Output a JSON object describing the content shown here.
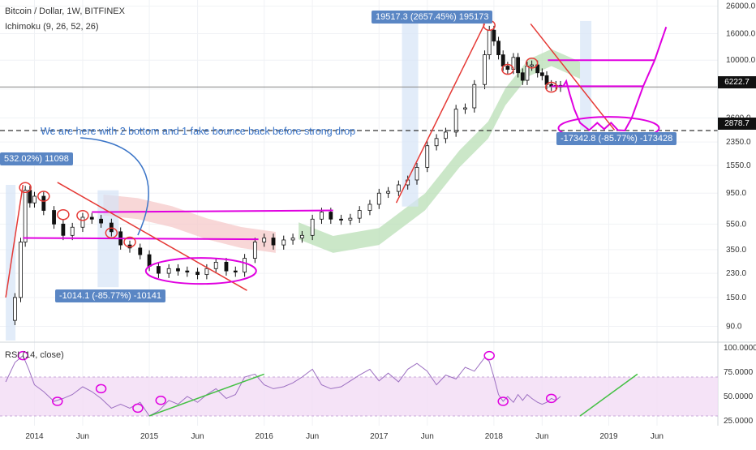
{
  "header": {
    "symbol": "Bitcoin / Dollar, 1W, BITFINEX",
    "indicator": "Ichimoku (9, 26, 52, 26)",
    "rsi_label": "RSI (14, close)"
  },
  "annotations": {
    "note": "We are here with 2 bottom and 1 fake bounce back before strong drop",
    "measure_2013": "532.02%) 11098",
    "measure_2017": "19517.3 (2657.45%) 195173",
    "drop_2014": "-1014.1 (-85.77%) -10141",
    "drop_2018": "-17342.8 (-85.77%) -173428"
  },
  "price_tags": {
    "current": "6222.7",
    "target": "2878.7"
  },
  "colors": {
    "candle": "#111111",
    "magenta": "#e000e0",
    "red_drawing": "#e53935",
    "green_drawing": "#43c043",
    "label_bg": "#5a86c4",
    "cloud_green": "#b9dfb5",
    "cloud_red": "#f5c9c9",
    "rsi_band": "#f2dcf5",
    "rsi_line": "#9c6fc1",
    "current_tag": "#111111",
    "target_tag": "#111111"
  },
  "chart_data": [
    {
      "type": "candlestick",
      "title": "Bitcoin / Dollar, 1W, BITFINEX",
      "scale": "log",
      "y_ticks": [
        90.0,
        150.0,
        230.0,
        350.0,
        550.0,
        950.0,
        1550.0,
        2350.0,
        3600.0,
        6000.0,
        10000.0,
        16000.0,
        26000.0
      ],
      "y_tick_labels": [
        "90.0",
        "150.0",
        "230.0",
        "350.0",
        "550.0",
        "950.0",
        "1550.0",
        "2350.0",
        "3600.0",
        "",
        "10000.0",
        "16000.0",
        "26000.0"
      ],
      "x_tick_labels": [
        "2014",
        "Jun",
        "2015",
        "Jun",
        "2016",
        "Jun",
        "2017",
        "Jun",
        "2018",
        "Jun",
        "2019",
        "Jun"
      ],
      "price_series": [
        [
          2013.75,
          100
        ],
        [
          2013.83,
          150
        ],
        [
          2013.88,
          400
        ],
        [
          2013.92,
          1000
        ],
        [
          2013.96,
          800
        ],
        [
          2014.0,
          900
        ],
        [
          2014.08,
          700
        ],
        [
          2014.17,
          550
        ],
        [
          2014.25,
          450
        ],
        [
          2014.33,
          520
        ],
        [
          2014.42,
          620
        ],
        [
          2014.5,
          600
        ],
        [
          2014.58,
          560
        ],
        [
          2014.67,
          480
        ],
        [
          2014.75,
          380
        ],
        [
          2014.83,
          360
        ],
        [
          2014.92,
          320
        ],
        [
          2015.0,
          260
        ],
        [
          2015.08,
          230
        ],
        [
          2015.17,
          250
        ],
        [
          2015.25,
          240
        ],
        [
          2015.33,
          235
        ],
        [
          2015.42,
          225
        ],
        [
          2015.5,
          250
        ],
        [
          2015.58,
          280
        ],
        [
          2015.67,
          240
        ],
        [
          2015.75,
          235
        ],
        [
          2015.83,
          300
        ],
        [
          2015.92,
          400
        ],
        [
          2016.0,
          430
        ],
        [
          2016.08,
          380
        ],
        [
          2016.17,
          415
        ],
        [
          2016.25,
          430
        ],
        [
          2016.33,
          450
        ],
        [
          2016.42,
          600
        ],
        [
          2016.5,
          680
        ],
        [
          2016.58,
          600
        ],
        [
          2016.67,
          590
        ],
        [
          2016.75,
          610
        ],
        [
          2016.83,
          700
        ],
        [
          2016.92,
          780
        ],
        [
          2017.0,
          950
        ],
        [
          2017.08,
          980
        ],
        [
          2017.17,
          1100
        ],
        [
          2017.25,
          1200
        ],
        [
          2017.33,
          1500
        ],
        [
          2017.42,
          2200
        ],
        [
          2017.5,
          2500
        ],
        [
          2017.58,
          2800
        ],
        [
          2017.67,
          4200
        ],
        [
          2017.75,
          4300
        ],
        [
          2017.83,
          6500
        ],
        [
          2017.92,
          11000
        ],
        [
          2017.96,
          17000
        ],
        [
          2018.0,
          14000
        ],
        [
          2018.04,
          11000
        ],
        [
          2018.08,
          9000
        ],
        [
          2018.12,
          8500
        ],
        [
          2018.17,
          10500
        ],
        [
          2018.21,
          8000
        ],
        [
          2018.25,
          7000
        ],
        [
          2018.29,
          9000
        ],
        [
          2018.33,
          9200
        ],
        [
          2018.38,
          8000
        ],
        [
          2018.42,
          7600
        ],
        [
          2018.46,
          6500
        ],
        [
          2018.5,
          6300
        ],
        [
          2018.54,
          6400
        ],
        [
          2018.58,
          6200
        ]
      ],
      "projection": [
        [
          2018.6,
          6222.7
        ],
        [
          2018.63,
          6900
        ],
        [
          2018.66,
          5500
        ],
        [
          2018.7,
          4200
        ],
        [
          2018.75,
          3300
        ],
        [
          2018.83,
          2900
        ],
        [
          2018.9,
          3300
        ],
        [
          2018.96,
          2950
        ],
        [
          2019.02,
          3300
        ],
        [
          2019.08,
          2900
        ],
        [
          2019.14,
          2878.7
        ],
        [
          2019.2,
          3600
        ],
        [
          2019.3,
          6300
        ],
        [
          2019.4,
          10000
        ],
        [
          2019.5,
          18000
        ]
      ],
      "levels": [
        {
          "label": "current",
          "value": 6222.7
        },
        {
          "label": "target",
          "value": 2878.7
        }
      ]
    },
    {
      "type": "line",
      "title": "RSI (14, close)",
      "y_ticks": [
        25.0,
        50.0,
        75.0,
        100.0
      ],
      "y_tick_labels": [
        "25.0000",
        "50.0000",
        "75.0000",
        "100.0000"
      ],
      "band": [
        30,
        70
      ],
      "series": [
        [
          2013.75,
          65
        ],
        [
          2013.83,
          85
        ],
        [
          2013.9,
          92
        ],
        [
          2013.95,
          78
        ],
        [
          2014.0,
          62
        ],
        [
          2014.08,
          55
        ],
        [
          2014.17,
          45
        ],
        [
          2014.25,
          48
        ],
        [
          2014.33,
          52
        ],
        [
          2014.42,
          60
        ],
        [
          2014.5,
          55
        ],
        [
          2014.58,
          48
        ],
        [
          2014.67,
          38
        ],
        [
          2014.75,
          42
        ],
        [
          2014.83,
          38
        ],
        [
          2014.92,
          44
        ],
        [
          2015.0,
          30
        ],
        [
          2015.08,
          35
        ],
        [
          2015.17,
          46
        ],
        [
          2015.25,
          42
        ],
        [
          2015.33,
          50
        ],
        [
          2015.42,
          44
        ],
        [
          2015.5,
          52
        ],
        [
          2015.58,
          58
        ],
        [
          2015.67,
          48
        ],
        [
          2015.75,
          52
        ],
        [
          2015.83,
          70
        ],
        [
          2015.92,
          73
        ],
        [
          2016.0,
          62
        ],
        [
          2016.08,
          58
        ],
        [
          2016.17,
          60
        ],
        [
          2016.25,
          64
        ],
        [
          2016.33,
          70
        ],
        [
          2016.42,
          78
        ],
        [
          2016.5,
          62
        ],
        [
          2016.58,
          58
        ],
        [
          2016.67,
          60
        ],
        [
          2016.75,
          66
        ],
        [
          2016.83,
          72
        ],
        [
          2016.92,
          78
        ],
        [
          2017.0,
          66
        ],
        [
          2017.08,
          74
        ],
        [
          2017.17,
          65
        ],
        [
          2017.25,
          78
        ],
        [
          2017.33,
          84
        ],
        [
          2017.42,
          76
        ],
        [
          2017.5,
          62
        ],
        [
          2017.58,
          72
        ],
        [
          2017.67,
          68
        ],
        [
          2017.75,
          80
        ],
        [
          2017.83,
          76
        ],
        [
          2017.92,
          90
        ],
        [
          2017.96,
          86
        ],
        [
          2018.0,
          70
        ],
        [
          2018.04,
          52
        ],
        [
          2018.08,
          45
        ],
        [
          2018.12,
          50
        ],
        [
          2018.17,
          44
        ],
        [
          2018.21,
          52
        ],
        [
          2018.25,
          46
        ],
        [
          2018.29,
          52
        ],
        [
          2018.33,
          48
        ],
        [
          2018.38,
          44
        ],
        [
          2018.42,
          42
        ],
        [
          2018.46,
          44
        ],
        [
          2018.5,
          48
        ],
        [
          2018.54,
          46
        ],
        [
          2018.58,
          50
        ]
      ]
    }
  ]
}
